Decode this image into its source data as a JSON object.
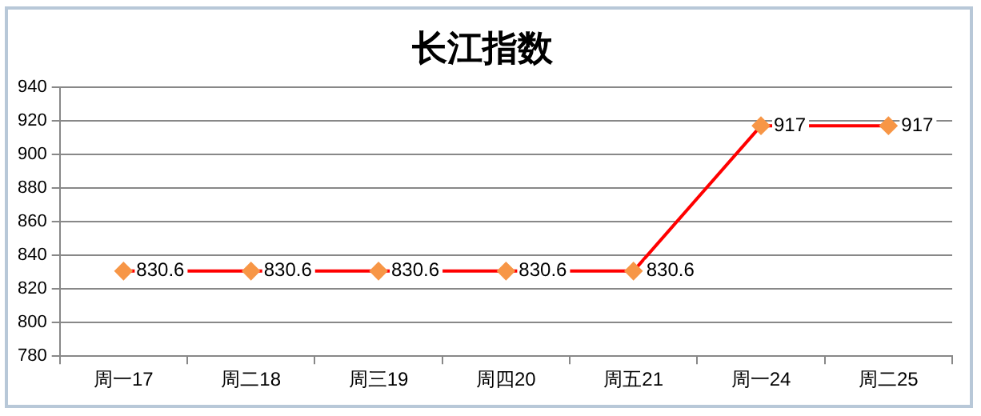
{
  "chart_data": {
    "type": "line",
    "title": "长江指数",
    "categories": [
      "周一17",
      "周二18",
      "周三19",
      "周四20",
      "周五21",
      "周一24",
      "周二25"
    ],
    "series": [
      {
        "color": "#ff0000",
        "colors": [
          "#f79646",
          "#f79646",
          "#f79646",
          "#f79646",
          "#f79646",
          "#f79646",
          "#f79646"
        ],
        "values": [
          830.6,
          830.6,
          830.6,
          830.6,
          830.6,
          917,
          917
        ]
      }
    ],
    "ylim": [
      780,
      940
    ],
    "yticks": [
      780,
      800,
      820,
      840,
      860,
      880,
      900,
      920,
      940
    ],
    "grid": "y",
    "legend": false,
    "marker": "diamond",
    "line_style": "solid",
    "data_labels": true
  }
}
